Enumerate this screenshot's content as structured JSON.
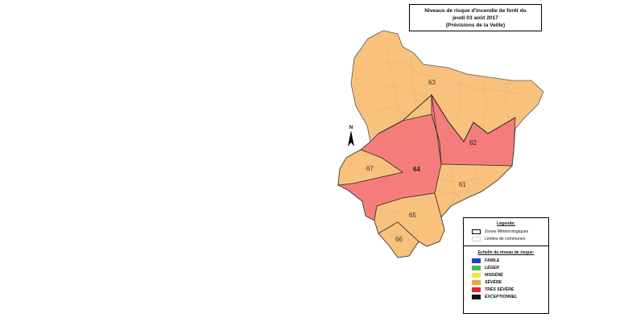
{
  "title": {
    "line1": "Niveaux de risque d'incendie de forêt du",
    "line2": "jeudi 03 août 2017",
    "line3": "(Prévisions de la Veille)"
  },
  "zones": [
    {
      "id": "63",
      "level": "SÉVÈRE",
      "color": "#f8c27c"
    },
    {
      "id": "62",
      "level": "TRÈS SÉVÈRE",
      "color": "#f47d7b"
    },
    {
      "id": "64",
      "level": "TRÈS SÉVÈRE",
      "color": "#f47d7b"
    },
    {
      "id": "67",
      "level": "SÉVÈRE",
      "color": "#f8c27c"
    },
    {
      "id": "61",
      "level": "SÉVÈRE",
      "color": "#f8c27c"
    },
    {
      "id": "65",
      "level": "SÉVÈRE",
      "color": "#f8c27c"
    },
    {
      "id": "66",
      "level": "SÉVÈRE",
      "color": "#f8c27c"
    }
  ],
  "north_arrow": {
    "label": "N"
  },
  "legend": {
    "heading": "Légende:",
    "items": [
      {
        "label": "Zones Météorologiques",
        "swatch": "zone-border"
      },
      {
        "label": "Limites de communes",
        "swatch": "commune-border"
      }
    ],
    "scale_heading": "Echelle du niveau de risque:",
    "scale": [
      {
        "label": "FAIBLE",
        "color": "#1f3fd6"
      },
      {
        "label": "LÉGER",
        "color": "#3fbf4a"
      },
      {
        "label": "MODÉRÉ",
        "color": "#f5e44a"
      },
      {
        "label": "SÉVÈRE",
        "color": "#f6a23a"
      },
      {
        "label": "TRÈS SÉVÈRE",
        "color": "#e3252b"
      },
      {
        "label": "EXCEPTIONNEL",
        "color": "#111111"
      }
    ]
  }
}
